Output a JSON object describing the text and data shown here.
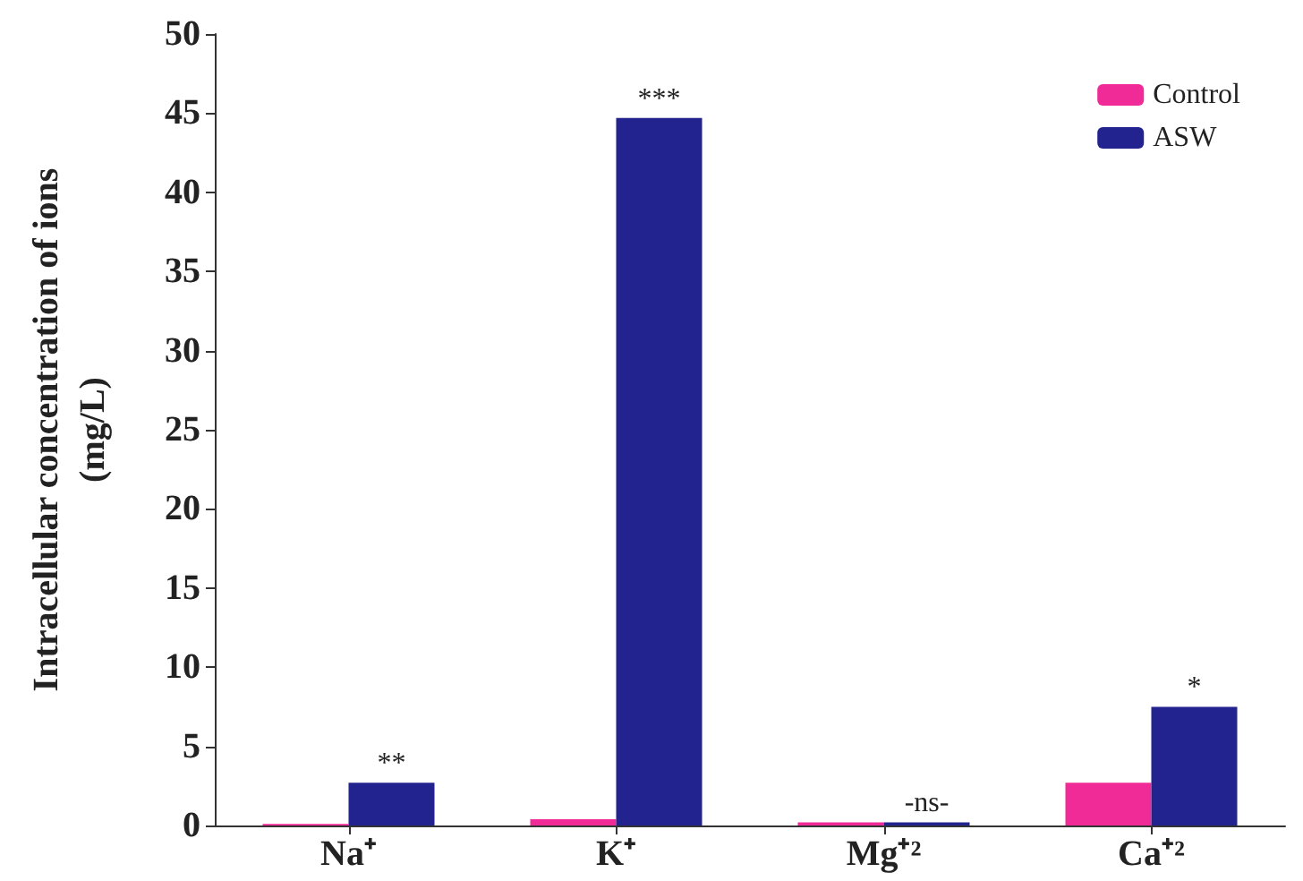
{
  "chart_data": {
    "type": "bar",
    "ylabel": "Intracellular concentration of ions\n(mg/L)",
    "categories": [
      "Na⁺",
      "K⁺",
      "Mg⁺²",
      "Ca⁺²"
    ],
    "series": [
      {
        "name": "Control",
        "color": "#f02a96",
        "values": [
          0.1,
          0.4,
          0.2,
          2.7
        ]
      },
      {
        "name": "ASW",
        "color": "#23238f",
        "values": [
          2.7,
          44.7,
          0.2,
          7.5
        ]
      }
    ],
    "ylim": [
      0,
      50
    ],
    "yticks": [
      0,
      5,
      10,
      15,
      20,
      25,
      30,
      35,
      40,
      45,
      50
    ],
    "grid": false,
    "legend": "top right",
    "annotations": [
      {
        "text": "**",
        "x": "Na⁺",
        "y": 2.7
      },
      {
        "text": "***",
        "x": "K⁺",
        "y": 44.7
      },
      {
        "text": "-ns-",
        "x": "Mg⁺²",
        "y": 0.2
      },
      {
        "text": "*",
        "x": "Ca⁺²",
        "y": 7.5
      }
    ]
  }
}
